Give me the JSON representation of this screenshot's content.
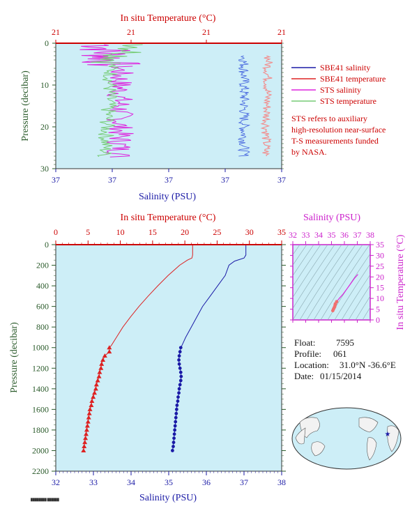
{
  "colors": {
    "panel_bg": "#cdeef7",
    "temperature": "#dd2222",
    "salinity": "#1a1aa6",
    "sts_salinity": "#dd22dd",
    "sts_temperature": "#77cc77",
    "sbe_temp_shallow": "#f09090",
    "sbe_sal_shallow": "#4060dd",
    "axis_red": "#cc0000",
    "axis_blue": "#1a1aa6",
    "axis_green": "#2a5a2a",
    "axis_magenta": "#cc22cc"
  },
  "top_panel": {
    "title": "In situ Temperature (°C)",
    "ylabel": "Pressure (decibar)",
    "xlabel": "Salinity (PSU)",
    "temp_ticks": [
      "21",
      "21",
      "21",
      "21"
    ],
    "sal_ticks": [
      "37",
      "37",
      "37",
      "37",
      "37"
    ],
    "pressure_ticks": [
      "0",
      "10",
      "20",
      "30"
    ],
    "legend": [
      {
        "label": "SBE41 salinity",
        "color": "#1a1aa6"
      },
      {
        "label": "SBE41 temperature",
        "color": "#dd2222"
      },
      {
        "label": "STS salinity",
        "color": "#dd22dd"
      },
      {
        "label": "STS temperature",
        "color": "#77cc77"
      }
    ],
    "note": [
      "STS refers to auxiliary",
      "high-resolution near-surface",
      "T-S measurements funded",
      "by NASA."
    ]
  },
  "main_panel": {
    "title": "In situ Temperature (°C)",
    "ylabel": "Pressure (decibar)",
    "xlabel": "Salinity (PSU)",
    "temp_ticks": [
      "0",
      "5",
      "10",
      "15",
      "20",
      "25",
      "30",
      "35"
    ],
    "sal_ticks": [
      "32",
      "33",
      "34",
      "35",
      "36",
      "37",
      "38"
    ],
    "pressure_ticks": [
      "0",
      "200",
      "400",
      "600",
      "800",
      "1000",
      "1200",
      "1400",
      "1600",
      "1800",
      "2000",
      "2200"
    ]
  },
  "ts_panel": {
    "title": "Salinity (PSU)",
    "ylabel": "In situ Temperature (°C)",
    "sal_ticks": [
      "32",
      "33",
      "34",
      "35",
      "36",
      "37",
      "38"
    ],
    "temp_ticks": [
      "0",
      "5",
      "10",
      "15",
      "20",
      "25",
      "30",
      "35"
    ]
  },
  "info": {
    "float_label": "Float:",
    "float_value": "7595",
    "profile_label": "Profile:",
    "profile_value": "061",
    "location_label": "Location:",
    "location_value": "31.0°N  -36.6°E",
    "date_label": "Date:",
    "date_value": "01/15/2014"
  },
  "chart_data": [
    {
      "type": "line",
      "name": "main-profile",
      "xlim_temperature": [
        0,
        35
      ],
      "xlim_salinity": [
        32,
        38
      ],
      "ylim_pressure": [
        2200,
        0
      ],
      "series": [
        {
          "name": "In situ Temperature",
          "color": "#dd2222",
          "pressure": [
            0,
            100,
            130,
            150,
            200,
            300,
            400,
            500,
            600,
            700,
            800,
            900,
            980,
            1000,
            1040,
            1080,
            1120,
            1160,
            1200,
            1240,
            1280,
            1320,
            1360,
            1400,
            1440,
            1480,
            1520,
            1560,
            1600,
            1640,
            1680,
            1720,
            1760,
            1800,
            1840,
            1880,
            1920,
            1960,
            2000
          ],
          "temperature": [
            21.2,
            21.2,
            21.1,
            20.4,
            19.2,
            17.4,
            15.8,
            14.3,
            12.9,
            11.6,
            10.4,
            9.4,
            8.6,
            8.3,
            8.3,
            7.6,
            7.3,
            7.1,
            7.0,
            6.8,
            6.7,
            6.5,
            6.3,
            6.2,
            6.0,
            5.8,
            5.6,
            5.5,
            5.3,
            5.2,
            5.1,
            5.0,
            4.9,
            4.8,
            4.7,
            4.6,
            4.5,
            4.4,
            4.3
          ]
        },
        {
          "name": "Salinity",
          "color": "#1a1aa6",
          "pressure": [
            0,
            100,
            130,
            160,
            200,
            300,
            400,
            500,
            600,
            700,
            800,
            900,
            980,
            1000,
            1040,
            1080,
            1120,
            1160,
            1200,
            1240,
            1280,
            1320,
            1360,
            1400,
            1440,
            1480,
            1520,
            1560,
            1600,
            1640,
            1680,
            1720,
            1760,
            1800,
            1840,
            1880,
            1920,
            1960,
            2000
          ],
          "salinity": [
            37.05,
            37.05,
            37.0,
            36.75,
            36.6,
            36.5,
            36.3,
            36.1,
            35.9,
            35.75,
            35.6,
            35.45,
            35.35,
            35.32,
            35.3,
            35.28,
            35.27,
            35.28,
            35.3,
            35.32,
            35.33,
            35.32,
            35.3,
            35.28,
            35.27,
            35.25,
            35.24,
            35.22,
            35.21,
            35.2,
            35.19,
            35.18,
            35.17,
            35.16,
            35.15,
            35.14,
            35.13,
            35.12,
            35.1
          ]
        }
      ]
    },
    {
      "type": "scatter",
      "name": "t-s-diagram",
      "xlim": [
        32,
        38
      ],
      "ylim": [
        0,
        35
      ],
      "series": [
        {
          "name": "T-S",
          "color": "#dd22dd",
          "salinity": [
            37.05,
            36.8,
            36.5,
            36.2,
            35.9,
            35.6,
            35.4,
            35.3,
            35.28,
            35.25,
            35.2,
            35.15,
            35.1
          ],
          "temperature": [
            21.2,
            19.5,
            17.0,
            14.5,
            12.0,
            10.0,
            8.5,
            7.5,
            7.0,
            6.2,
            5.6,
            5.0,
            4.3
          ]
        }
      ]
    }
  ]
}
